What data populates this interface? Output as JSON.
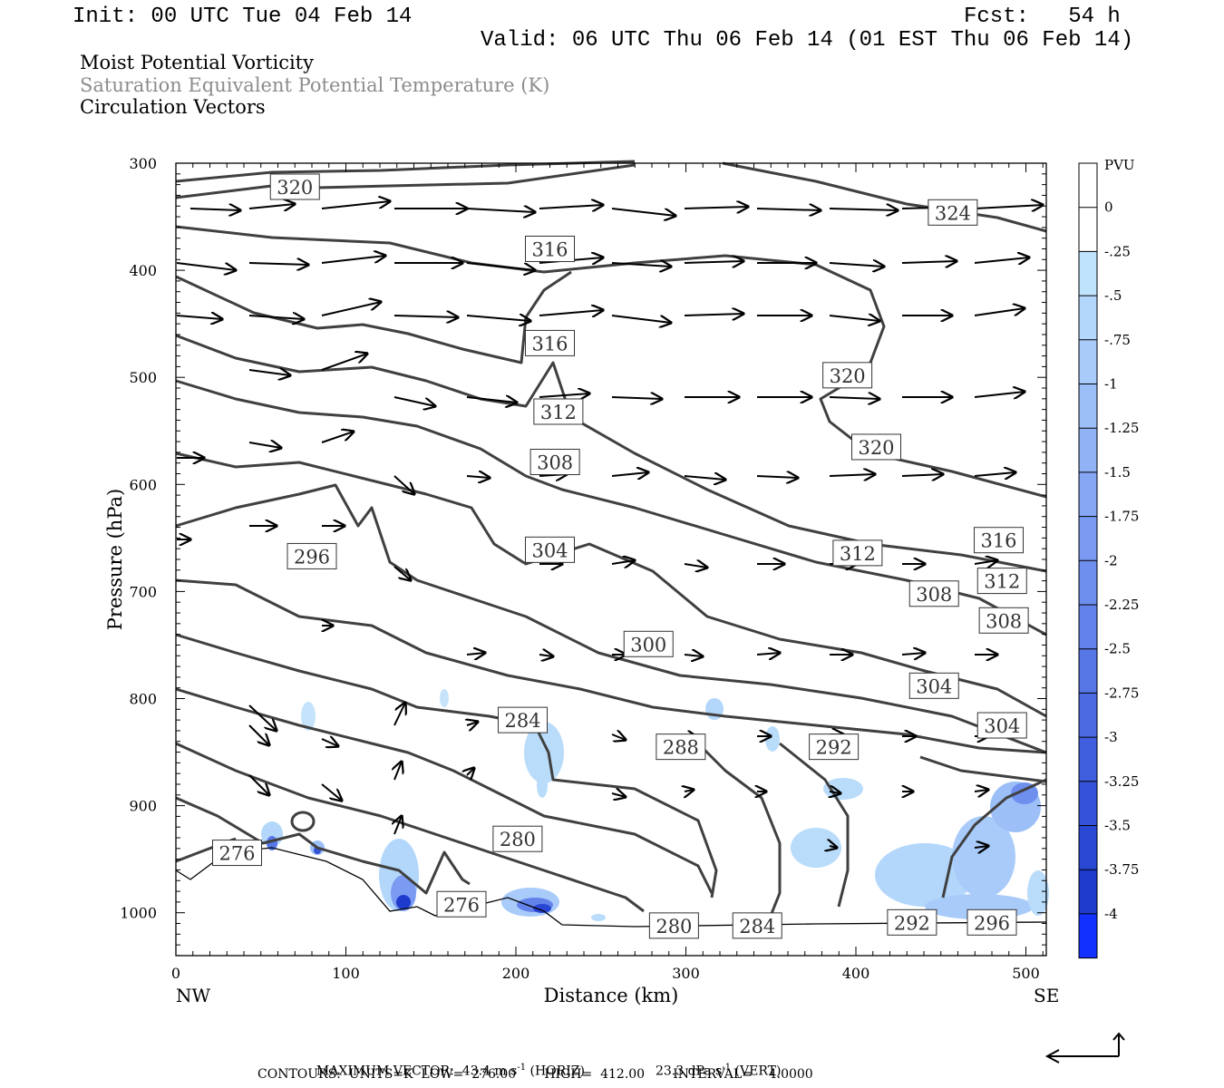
{
  "header": {
    "init": "Init: 00 UTC Tue 04 Feb 14",
    "fcst": "Fcst:   54 h",
    "valid": "Valid: 06 UTC Thu 06 Feb 14 (01 EST Thu 06 Feb 14)"
  },
  "titles": [
    {
      "text": "Moist Potential Vorticity",
      "color": "#000000"
    },
    {
      "text": "Saturation Equivalent Potential Temperature (K)",
      "color": "#8c8c8c"
    },
    {
      "text": "Circulation Vectors",
      "color": "#000000"
    }
  ],
  "footer": {
    "max_vector_label": "MAXIMUM VECTOR:",
    "horiz": "43.4 m s",
    "horiz_exp": "-1",
    "horiz_unit": "(HORIZ)",
    "vert": "23.3 dPa s",
    "vert_exp": "-1",
    "vert_unit": "(VERT)",
    "contours": "CONTOURS:  UNITS=K  LOW=  276.00       HIGH=  412.00       INTERVAL=    4.0000"
  },
  "colors": {
    "contour": "#404040",
    "axis": "#000000",
    "pv_fill": "#6a86e8"
  },
  "chart_data": {
    "type": "cross-section",
    "xlabel": "Distance (km)",
    "ylabel": "Pressure (hPa)",
    "xlim": [
      0,
      512
    ],
    "ylim": [
      1040,
      300
    ],
    "x_ticks": [
      0,
      100,
      200,
      300,
      400,
      500
    ],
    "y_ticks": [
      300,
      400,
      500,
      600,
      700,
      800,
      900,
      1000
    ],
    "x_end_labels": {
      "left": "NW",
      "right": "SE"
    },
    "contour_labels": [
      {
        "value": "320",
        "x": 70,
        "p": 322
      },
      {
        "value": "324",
        "x": 457,
        "p": 346
      },
      {
        "value": "316",
        "x": 220,
        "p": 380
      },
      {
        "value": "316",
        "x": 220,
        "p": 468
      },
      {
        "value": "320",
        "x": 395,
        "p": 498
      },
      {
        "value": "312",
        "x": 225,
        "p": 532
      },
      {
        "value": "320",
        "x": 412,
        "p": 565
      },
      {
        "value": "308",
        "x": 223,
        "p": 579
      },
      {
        "value": "316",
        "x": 484,
        "p": 652
      },
      {
        "value": "304",
        "x": 220,
        "p": 661
      },
      {
        "value": "312",
        "x": 401,
        "p": 664
      },
      {
        "value": "296",
        "x": 80,
        "p": 667
      },
      {
        "value": "312",
        "x": 486,
        "p": 690
      },
      {
        "value": "308",
        "x": 446,
        "p": 702
      },
      {
        "value": "308",
        "x": 487,
        "p": 727
      },
      {
        "value": "300",
        "x": 278,
        "p": 749
      },
      {
        "value": "304",
        "x": 446,
        "p": 788
      },
      {
        "value": "284",
        "x": 204,
        "p": 820
      },
      {
        "value": "304",
        "x": 486,
        "p": 825
      },
      {
        "value": "288",
        "x": 297,
        "p": 845
      },
      {
        "value": "292",
        "x": 387,
        "p": 845
      },
      {
        "value": "280",
        "x": 201,
        "p": 931
      },
      {
        "value": "276",
        "x": 36,
        "p": 944
      },
      {
        "value": "276",
        "x": 168,
        "p": 992
      },
      {
        "value": "280",
        "x": 293,
        "p": 1012
      },
      {
        "value": "284",
        "x": 342,
        "p": 1012
      },
      {
        "value": "292",
        "x": 433,
        "p": 1009
      },
      {
        "value": "296",
        "x": 480,
        "p": 1009
      }
    ],
    "pv_colorbar": {
      "unit": "PVU",
      "labels": [
        "0",
        "-.25",
        "-.5",
        "-.75",
        "-1",
        "-1.25",
        "-1.5",
        "-1.75",
        "-2",
        "-2.25",
        "-2.5",
        "-2.75",
        "-3",
        "-3.25",
        "-3.5",
        "-3.75",
        "-4"
      ],
      "colors": [
        "#ffffff",
        "#ffffff",
        "#bfe3fc",
        "#b3d7fb",
        "#a8cbfa",
        "#9cbff8",
        "#91b3f6",
        "#85a7f4",
        "#7a9bf1",
        "#6e8fee",
        "#6383eb",
        "#5777e7",
        "#4c6be3",
        "#405fde",
        "#3553d8",
        "#2947d2",
        "#1e3bcc",
        "#1230ff"
      ]
    },
    "max_vector": {
      "horiz_m_s": 43.4,
      "vert_dPa_s": 23.3
    },
    "contour_info": {
      "units": "K",
      "low": 276.0,
      "high": 412.0,
      "interval": 4.0
    }
  }
}
